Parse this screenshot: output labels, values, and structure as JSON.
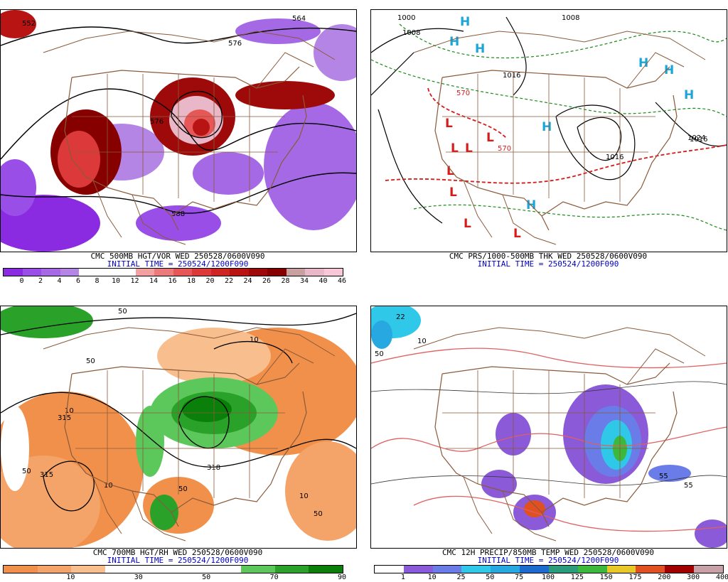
{
  "panels": [
    {
      "id": "vort",
      "title": "CMC 500MB HGT/VOR WED 250528/0600V090",
      "subtitle": "INITIAL TIME = 250524/1200F090",
      "contour_labels": [
        "552",
        "564",
        "576",
        "576",
        "588"
      ],
      "colorbar": {
        "labels": [
          "0",
          "2",
          "4",
          "6",
          "8",
          "10",
          "12",
          "14",
          "16",
          "18",
          "20",
          "22",
          "24",
          "26",
          "28",
          "34",
          "40",
          "46"
        ],
        "colors": [
          "#8a2be2",
          "#9a4ee8",
          "#a569e6",
          "#b585e6",
          "#ffffff",
          "#ffffff",
          "#ffffff",
          "#f2a0a0",
          "#ec7a7a",
          "#e65858",
          "#dc3a3a",
          "#cf2424",
          "#b81414",
          "#9e0a0a",
          "#860000",
          "#c8a0a0",
          "#e8b8c8",
          "#f8c8d8"
        ]
      }
    },
    {
      "id": "pressure",
      "title": "CMC PRS/1000-500MB THK WED 250528/0600V090",
      "subtitle": "INITIAL TIME = 250524/1200F090",
      "contour_labels": [
        "1000",
        "1008",
        "1008",
        "1016",
        "1016",
        "1016",
        "1024",
        "570",
        "570"
      ],
      "high_symbol": "H",
      "low_symbol": "L"
    },
    {
      "id": "rh",
      "title": "CMC 700MB HGT/RH WED 250528/0600V090",
      "subtitle": "INITIAL TIME = 250524/1200F090",
      "contour_labels": [
        "50",
        "50",
        "10",
        "10",
        "315",
        "315",
        "50",
        "10",
        "318",
        "50",
        "10",
        "50"
      ],
      "colorbar": {
        "labels": [
          "10",
          "30",
          "50",
          "70",
          "90"
        ],
        "colors": [
          "#f0904a",
          "#f4a468",
          "#f8be8e",
          "#ffffff",
          "#ffffff",
          "#ffffff",
          "#ffffff",
          "#5cc85c",
          "#2aa22a",
          "#0a800a"
        ]
      }
    },
    {
      "id": "precip",
      "title": "CMC 12H PRECIP/850MB TEMP WED 250528/0600V090",
      "subtitle": "INITIAL TIME = 250524/1200F090",
      "contour_labels": [
        "22",
        "10",
        "50",
        "55",
        "55"
      ],
      "colorbar": {
        "labels": [
          "1",
          "10",
          "25",
          "50",
          "75",
          "100",
          "125",
          "150",
          "175",
          "200",
          "300",
          "400"
        ],
        "colors": [
          "#ffffff",
          "#8a5ad8",
          "#6a7ce8",
          "#30c8e8",
          "#28a8e0",
          "#1c6cd0",
          "#2a9c7c",
          "#3cb83c",
          "#e8c828",
          "#e05020",
          "#a00000",
          "#c8a0a8"
        ]
      }
    }
  ]
}
